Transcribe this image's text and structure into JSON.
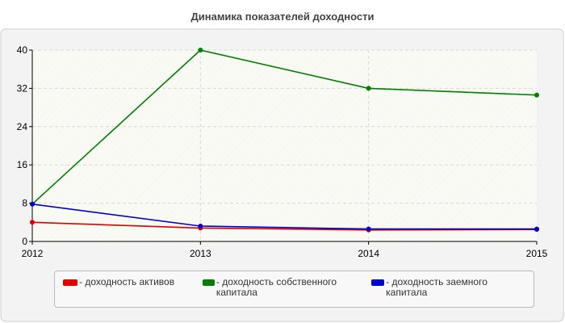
{
  "chart_data": {
    "type": "line",
    "title": "Динамика показателей доходности",
    "categories": [
      "2012",
      "2013",
      "2014",
      "2015"
    ],
    "ylim": [
      0,
      40
    ],
    "yticks": [
      "0",
      "8",
      "16",
      "24",
      "32",
      "40"
    ],
    "grid": true,
    "legend_position": "bottom",
    "series": [
      {
        "name": "- доходность активов",
        "color": "#e00000",
        "values": [
          4.0,
          2.8,
          2.4,
          2.5
        ]
      },
      {
        "name": "- доходность собственного капитала",
        "color": "#008000",
        "values": [
          7.8,
          40.0,
          32.0,
          30.6
        ]
      },
      {
        "name": "- доходность заемного капитала",
        "color": "#0000cc",
        "values": [
          7.8,
          3.2,
          2.6,
          2.6
        ]
      }
    ]
  },
  "colors": {
    "plot_background": "#fafaf5",
    "frame_background": "#f3f3f3"
  }
}
